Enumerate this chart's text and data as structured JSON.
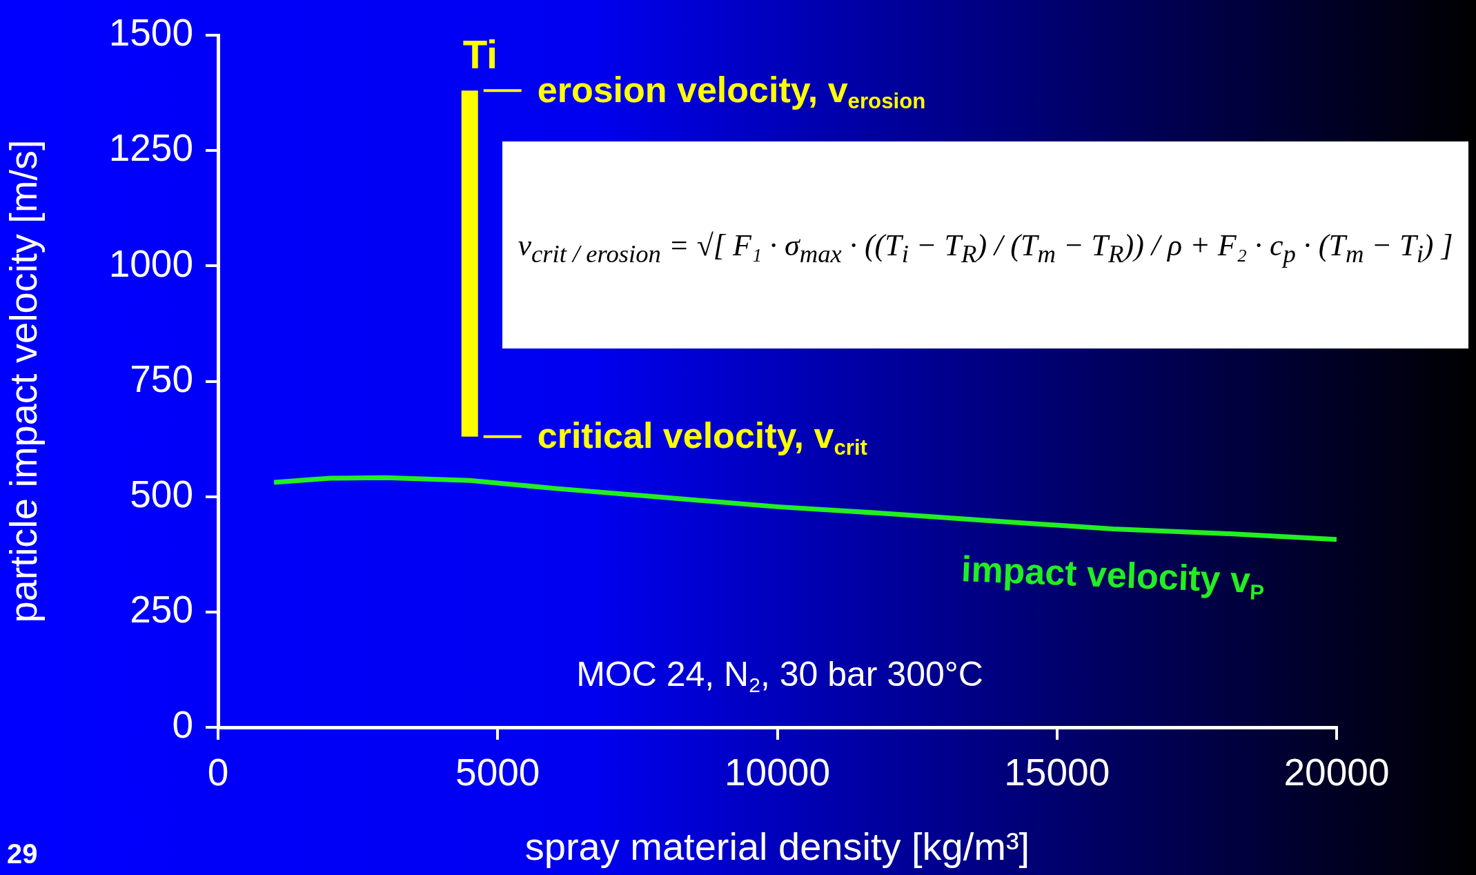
{
  "chart_data": {
    "type": "line",
    "xlabel": "spray material density [kg/m³]",
    "ylabel": "particle impact velocity [m/s]",
    "xlim": [
      0,
      20000
    ],
    "xticks": [
      0,
      5000,
      10000,
      15000,
      20000
    ],
    "ylim": [
      0,
      1500
    ],
    "yticks": [
      0,
      250,
      500,
      750,
      1000,
      1250,
      1500
    ],
    "grid": false,
    "legend": false,
    "marker": "none",
    "line_style": "solid",
    "series": [
      {
        "name": "Ti",
        "color": "#ffff00",
        "x": [
          4500,
          4500
        ],
        "values": [
          630,
          1380
        ]
      },
      {
        "name": "impact velocity v$_{P}$",
        "color": "#22ee22",
        "x": [
          1000,
          2000,
          3000,
          4500,
          6000,
          8000,
          10000,
          12000,
          14000,
          16000,
          18000,
          20000
        ],
        "values": [
          531,
          540,
          541,
          535,
          518,
          498,
          478,
          463,
          446,
          430,
          420,
          407
        ]
      }
    ],
    "annotations": [
      {
        "text": "erosion velocity, v$_{erosion}$",
        "x": 4500,
        "y": 1380
      },
      {
        "text": "critical velocity, v$_{crit}$",
        "x": 4500,
        "y": 630
      },
      "v$_{crit / erosion}$ = √[ F₁ · σ$_{max}$ · ((T$_{i}$ − T$_{R}$) / (T$_{m}$ − T$_{R}$)) / ρ + F₂ · c$_{p}$ · (T$_{m}$ − T$_{i}$) ]",
      "MOC 24, N$_{2}$, 30 bar 300°C",
      "29"
    ]
  }
}
